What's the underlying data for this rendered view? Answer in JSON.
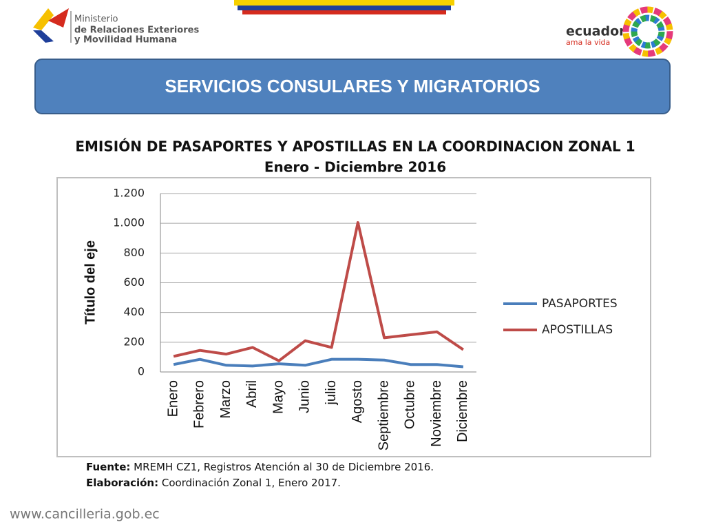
{
  "header": {
    "ministry": [
      "Ministerio",
      "de Relaciones Exteriores",
      "y Movilidad Humana"
    ],
    "brand": "ecuador",
    "slogan": "ama la vida"
  },
  "banner": "SERVICIOS CONSULARES Y MIGRATORIOS",
  "chart_data": {
    "type": "line",
    "title": "EMISIÓN DE PASAPORTES Y APOSTILLAS EN LA COORDINACION ZONAL 1",
    "subtitle": "Enero - Diciembre 2016",
    "y_label": "Título del eje",
    "categories": [
      "Enero",
      "Febrero",
      "Marzo",
      "Abril",
      "Mayo",
      "Junio",
      "julio",
      "Agosto",
      "Septiembre",
      "Octubre",
      "Noviembre",
      "Diciembre"
    ],
    "series": [
      {
        "name": "PASAPORTES",
        "color": "#4a7ebb",
        "values": [
          50,
          85,
          45,
          40,
          55,
          45,
          85,
          85,
          80,
          50,
          50,
          35
        ]
      },
      {
        "name": "APOSTILLAS",
        "color": "#be4b48",
        "values": [
          105,
          145,
          120,
          165,
          75,
          210,
          165,
          1005,
          230,
          250,
          270,
          150
        ]
      }
    ],
    "ylim": [
      0,
      1200
    ],
    "yticks": [
      0,
      200,
      400,
      600,
      800,
      {
        "value": 1000,
        "label": "1.000"
      },
      {
        "value": 1200,
        "label": "1.200"
      }
    ],
    "grid": true,
    "legend": "right"
  },
  "source": {
    "label": "Fuente:",
    "text": " MREMH CZ1, Registros Atención al 30 de Diciembre 2016."
  },
  "elaboration": {
    "label": "Elaboración:",
    "text": " Coordinación Zonal 1, Enero 2017."
  },
  "footer": "www.cancilleria.gob.ec"
}
